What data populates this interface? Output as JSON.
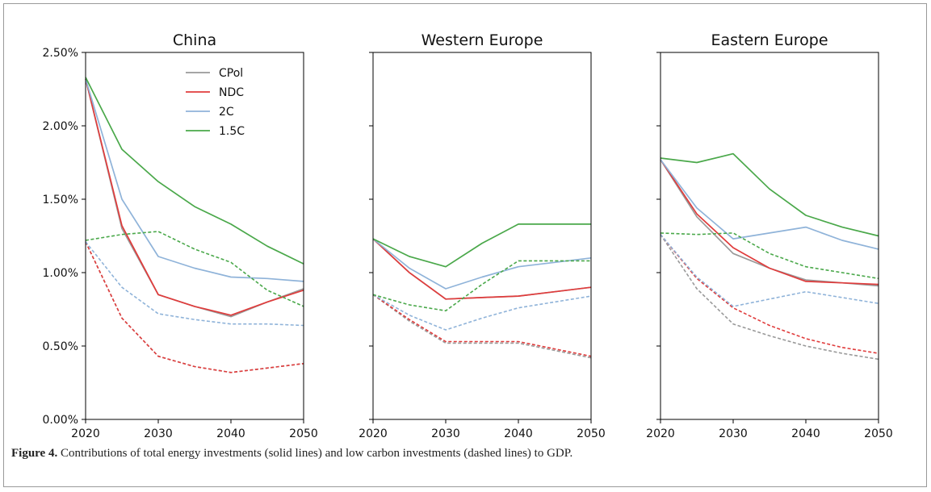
{
  "caption": {
    "label": "Figure 4.",
    "text": " Contributions of total energy investments (solid lines) and low carbon investments (dashed lines) to GDP."
  },
  "chart_data": {
    "type": "line",
    "ylim": [
      0,
      0.025
    ],
    "yticks": [
      0,
      0.005,
      0.01,
      0.015,
      0.02,
      0.025
    ],
    "ytick_labels": [
      "0.00%",
      "0.50%",
      "1.00%",
      "1.50%",
      "2.00%",
      "2.50%"
    ],
    "xlim": [
      2020,
      2050
    ],
    "xticks": [
      2020,
      2030,
      2040,
      2050
    ],
    "xtick_labels": [
      "2020",
      "2030",
      "2040",
      "2050"
    ],
    "legend_placement": "top-right of first panel",
    "legend": [
      {
        "name": "CPol",
        "color": "#999999"
      },
      {
        "name": "NDC",
        "color": "#e03c3c"
      },
      {
        "name": "2C",
        "color": "#8fb3d9"
      },
      {
        "name": "1.5C",
        "color": "#4aa84a"
      }
    ],
    "panels": [
      {
        "title": "China",
        "x": [
          2020,
          2025,
          2030,
          2035,
          2040,
          2045,
          2050
        ],
        "series": [
          {
            "name": "CPol",
            "style": "solid",
            "values": [
              0.0232,
              0.013,
              0.0085,
              0.0077,
              0.007,
              0.008,
              0.0089
            ]
          },
          {
            "name": "NDC",
            "style": "solid",
            "values": [
              0.0232,
              0.0132,
              0.0085,
              0.0077,
              0.0071,
              0.008,
              0.0088
            ]
          },
          {
            "name": "2C",
            "style": "solid",
            "values": [
              0.0232,
              0.015,
              0.0111,
              0.0103,
              0.0097,
              0.0096,
              0.0094
            ]
          },
          {
            "name": "1.5C",
            "style": "solid",
            "values": [
              0.0233,
              0.0184,
              0.0162,
              0.0145,
              0.0133,
              0.0118,
              0.0106
            ]
          },
          {
            "name": "CPol",
            "style": "dashed",
            "values": [
              0.0121,
              0.0069,
              0.0043,
              0.0036,
              0.0032,
              0.0035,
              0.0038
            ]
          },
          {
            "name": "NDC",
            "style": "dashed",
            "values": [
              0.0121,
              0.0069,
              0.0043,
              0.0036,
              0.0032,
              0.0035,
              0.0038
            ]
          },
          {
            "name": "2C",
            "style": "dashed",
            "values": [
              0.0121,
              0.009,
              0.0072,
              0.0068,
              0.0065,
              0.0065,
              0.0064
            ]
          },
          {
            "name": "1.5C",
            "style": "dashed",
            "values": [
              0.0122,
              0.0126,
              0.0128,
              0.0116,
              0.0107,
              0.0088,
              0.0077
            ]
          }
        ]
      },
      {
        "title": "Western Europe",
        "x": [
          2020,
          2025,
          2030,
          2035,
          2040,
          2045,
          2050
        ],
        "series": [
          {
            "name": "CPol",
            "style": "solid",
            "values": [
              0.0123,
              0.01,
              0.0082,
              0.0083,
              0.0084,
              0.0087,
              0.009
            ]
          },
          {
            "name": "NDC",
            "style": "solid",
            "values": [
              0.0123,
              0.01,
              0.0082,
              0.0083,
              0.0084,
              0.0087,
              0.009
            ]
          },
          {
            "name": "2C",
            "style": "solid",
            "values": [
              0.0123,
              0.0103,
              0.0089,
              0.0097,
              0.0104,
              0.0107,
              0.011
            ]
          },
          {
            "name": "1.5C",
            "style": "solid",
            "values": [
              0.0123,
              0.0111,
              0.0104,
              0.012,
              0.0133,
              0.0133,
              0.0133
            ]
          },
          {
            "name": "CPol",
            "style": "dashed",
            "values": [
              0.0085,
              0.0067,
              0.0052,
              0.0052,
              0.0052,
              0.0047,
              0.0042
            ]
          },
          {
            "name": "NDC",
            "style": "dashed",
            "values": [
              0.0085,
              0.0068,
              0.0053,
              0.0053,
              0.0053,
              0.0048,
              0.0043
            ]
          },
          {
            "name": "2C",
            "style": "dashed",
            "values": [
              0.0085,
              0.0071,
              0.0061,
              0.0069,
              0.0076,
              0.008,
              0.0084
            ]
          },
          {
            "name": "1.5C",
            "style": "dashed",
            "values": [
              0.0085,
              0.0078,
              0.0074,
              0.0092,
              0.0108,
              0.0108,
              0.0108
            ]
          }
        ]
      },
      {
        "title": "Eastern Europe",
        "x": [
          2020,
          2025,
          2030,
          2035,
          2040,
          2045,
          2050
        ],
        "series": [
          {
            "name": "CPol",
            "style": "solid",
            "values": [
              0.0177,
              0.0138,
              0.0113,
              0.0103,
              0.0095,
              0.0093,
              0.0091
            ]
          },
          {
            "name": "NDC",
            "style": "solid",
            "values": [
              0.0177,
              0.014,
              0.0117,
              0.0103,
              0.0094,
              0.0093,
              0.0092
            ]
          },
          {
            "name": "2C",
            "style": "solid",
            "values": [
              0.0177,
              0.0144,
              0.0123,
              0.0127,
              0.0131,
              0.0122,
              0.0116
            ]
          },
          {
            "name": "1.5C",
            "style": "solid",
            "values": [
              0.0178,
              0.0175,
              0.0181,
              0.0157,
              0.0139,
              0.0131,
              0.0125
            ]
          },
          {
            "name": "CPol",
            "style": "dashed",
            "values": [
              0.0126,
              0.0089,
              0.0065,
              0.0057,
              0.005,
              0.0045,
              0.0041
            ]
          },
          {
            "name": "NDC",
            "style": "dashed",
            "values": [
              0.0126,
              0.0096,
              0.0076,
              0.0064,
              0.0055,
              0.0049,
              0.0045
            ]
          },
          {
            "name": "2C",
            "style": "dashed",
            "values": [
              0.0126,
              0.0097,
              0.0077,
              0.0082,
              0.0087,
              0.0083,
              0.0079
            ]
          },
          {
            "name": "1.5C",
            "style": "dashed",
            "values": [
              0.0127,
              0.0126,
              0.0127,
              0.0113,
              0.0104,
              0.01,
              0.0096
            ]
          }
        ]
      }
    ]
  }
}
